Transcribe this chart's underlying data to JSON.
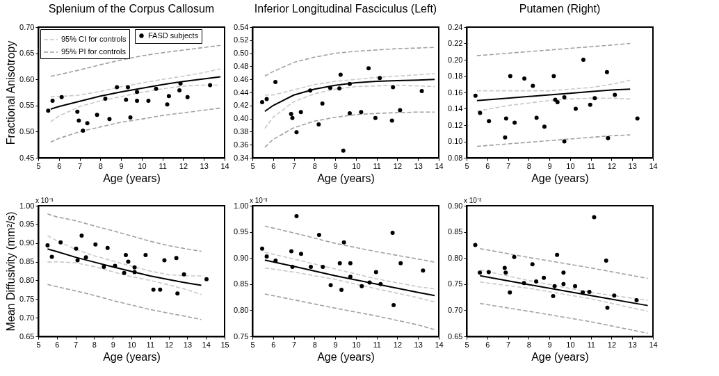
{
  "chart_data": [
    {
      "type": "scatter",
      "title": "Splenium of the Corpus Callosum",
      "xlabel": "Age (years)",
      "ylabel": "Fractional Anisotropy",
      "xlim": [
        5,
        14
      ],
      "xticks": [
        5,
        6,
        7,
        8,
        9,
        10,
        11,
        12,
        13,
        14
      ],
      "ylim": [
        0.45,
        0.7
      ],
      "yticks": [
        {
          "value": 0.45,
          "label": "0.45"
        },
        {
          "value": 0.5,
          "label": "0.50"
        },
        {
          "value": 0.55,
          "label": "0.55"
        },
        {
          "value": 0.6,
          "label": "0.60"
        },
        {
          "value": 0.65,
          "label": "0.65"
        },
        {
          "value": 0.7,
          "label": "0.70"
        }
      ],
      "legend": "top left",
      "series": [
        {
          "name": "95% CI for controls",
          "type": "line",
          "line_style": "dashed",
          "color": "#c8c8c8",
          "x": [
            5.6,
            6,
            7,
            8,
            9,
            10,
            11,
            12,
            13,
            13.8
          ],
          "values": [
            0.567,
            0.567,
            0.57,
            0.577,
            0.586,
            0.593,
            0.6,
            0.606,
            0.613,
            0.62
          ]
        },
        {
          "type": "line",
          "line_style": "dashed",
          "color": "#c8c8c8",
          "x": [
            5.6,
            6,
            7,
            8,
            9,
            10,
            11,
            12,
            13,
            13.8
          ],
          "values": [
            0.519,
            0.53,
            0.548,
            0.559,
            0.567,
            0.575,
            0.582,
            0.587,
            0.589,
            0.589
          ]
        },
        {
          "name": "95% PI for controls",
          "type": "line",
          "line_style": "dashed",
          "color": "#a0a0a0",
          "x": [
            5.6,
            6,
            7,
            8,
            9,
            10,
            11,
            12,
            13,
            13.8
          ],
          "values": [
            0.606,
            0.609,
            0.618,
            0.628,
            0.637,
            0.645,
            0.651,
            0.656,
            0.661,
            0.665
          ]
        },
        {
          "type": "line",
          "line_style": "dashed",
          "color": "#a0a0a0",
          "x": [
            5.6,
            6,
            7,
            8,
            9,
            10,
            11,
            12,
            13,
            13.8
          ],
          "values": [
            0.48,
            0.487,
            0.5,
            0.509,
            0.518,
            0.524,
            0.531,
            0.536,
            0.541,
            0.545
          ]
        },
        {
          "type": "line",
          "line_style": "solid",
          "color": "#000000",
          "x": [
            5.6,
            6,
            7,
            8,
            9,
            10,
            11,
            12,
            13,
            13.8
          ],
          "values": [
            0.543,
            0.548,
            0.558,
            0.568,
            0.576,
            0.583,
            0.59,
            0.596,
            0.601,
            0.605
          ]
        },
        {
          "name": "FASD subjects",
          "type": "scatter",
          "marker": "circle",
          "color": "#000000",
          "x": [
            5.48,
            5.69,
            6.13,
            6.89,
            6.96,
            7.16,
            7.37,
            7.84,
            8.24,
            8.44,
            8.8,
            9.24,
            9.33,
            9.45,
            9.77,
            9.77,
            10.32,
            10.69,
            11.31,
            11.23,
            11.82,
            11.87,
            12.21,
            13.3
          ],
          "values": [
            0.54,
            0.559,
            0.566,
            0.538,
            0.521,
            0.502,
            0.516,
            0.532,
            0.563,
            0.524,
            0.585,
            0.561,
            0.585,
            0.527,
            0.576,
            0.559,
            0.559,
            0.582,
            0.568,
            0.552,
            0.579,
            0.592,
            0.566,
            0.589
          ]
        }
      ]
    },
    {
      "type": "scatter",
      "title": "Inferior Longitudinal Fasciculus (Left)",
      "xlabel": "Age (years)",
      "xlim": [
        5,
        14
      ],
      "xticks": [
        5,
        6,
        7,
        8,
        9,
        10,
        11,
        12,
        13,
        14
      ],
      "ylim": [
        0.34,
        0.54
      ],
      "yticks": [
        {
          "value": 0.34,
          "label": "0.34"
        },
        {
          "value": 0.36,
          "label": "0.36"
        },
        {
          "value": 0.38,
          "label": "0.38"
        },
        {
          "value": 0.4,
          "label": "0.40"
        },
        {
          "value": 0.42,
          "label": "0.42"
        },
        {
          "value": 0.44,
          "label": "0.44"
        },
        {
          "value": 0.46,
          "label": "0.46"
        },
        {
          "value": 0.48,
          "label": "0.48"
        },
        {
          "value": 0.5,
          "label": "0.50"
        },
        {
          "value": 0.52,
          "label": "0.52"
        },
        {
          "value": 0.54,
          "label": "0.54"
        }
      ],
      "series": [
        {
          "type": "line",
          "line_style": "dashed",
          "color": "#c8c8c8",
          "x": [
            5.6,
            6,
            7,
            8,
            9,
            10,
            11,
            12,
            13,
            13.8
          ],
          "values": [
            0.436,
            0.436,
            0.444,
            0.452,
            0.457,
            0.46,
            0.463,
            0.465,
            0.467,
            0.469
          ]
        },
        {
          "type": "line",
          "line_style": "dashed",
          "color": "#c8c8c8",
          "x": [
            5.6,
            6,
            7,
            8,
            9,
            10,
            11,
            12,
            13,
            13.8
          ],
          "values": [
            0.385,
            0.402,
            0.426,
            0.438,
            0.445,
            0.449,
            0.45,
            0.451,
            0.45,
            0.449
          ]
        },
        {
          "type": "line",
          "line_style": "dashed",
          "color": "#a0a0a0",
          "x": [
            5.6,
            6,
            7,
            8,
            9,
            10,
            11,
            12,
            13,
            13.8
          ],
          "values": [
            0.465,
            0.472,
            0.486,
            0.494,
            0.5,
            0.503,
            0.505,
            0.507,
            0.508,
            0.509
          ]
        },
        {
          "type": "line",
          "line_style": "dashed",
          "color": "#a0a0a0",
          "x": [
            5.6,
            6,
            7,
            8,
            9,
            10,
            11,
            12,
            13,
            13.8
          ],
          "values": [
            0.356,
            0.368,
            0.386,
            0.396,
            0.402,
            0.406,
            0.408,
            0.409,
            0.41,
            0.41
          ]
        },
        {
          "type": "line",
          "line_style": "solid",
          "color": "#000000",
          "x": [
            5.6,
            6,
            7,
            8,
            9,
            10,
            11,
            12,
            13,
            13.8
          ],
          "values": [
            0.411,
            0.42,
            0.436,
            0.445,
            0.451,
            0.455,
            0.457,
            0.458,
            0.459,
            0.46
          ]
        },
        {
          "type": "scatter",
          "marker": "circle",
          "color": "#000000",
          "x": [
            5.47,
            5.69,
            6.11,
            6.87,
            6.93,
            7.13,
            7.34,
            7.79,
            8.2,
            8.38,
            8.76,
            9.2,
            9.26,
            9.39,
            9.7,
            9.7,
            10.25,
            10.61,
            10.94,
            11.15,
            11.74,
            11.79,
            12.13,
            13.18
          ],
          "values": [
            0.425,
            0.43,
            0.456,
            0.407,
            0.401,
            0.379,
            0.41,
            0.443,
            0.391,
            0.423,
            0.447,
            0.446,
            0.467,
            0.351,
            0.453,
            0.408,
            0.41,
            0.477,
            0.401,
            0.462,
            0.397,
            0.448,
            0.413,
            0.442
          ]
        }
      ]
    },
    {
      "type": "scatter",
      "title": "Putamen (Right)",
      "xlabel": "Age (years)",
      "xlim": [
        5,
        14
      ],
      "xticks": [
        5,
        6,
        7,
        8,
        9,
        10,
        11,
        12,
        13,
        14
      ],
      "ylim": [
        0.08,
        0.24
      ],
      "yticks": [
        {
          "value": 0.08,
          "label": "0.08"
        },
        {
          "value": 0.1,
          "label": "0.10"
        },
        {
          "value": 0.12,
          "label": "0.12"
        },
        {
          "value": 0.14,
          "label": "0.14"
        },
        {
          "value": 0.16,
          "label": "0.16"
        },
        {
          "value": 0.18,
          "label": "0.18"
        },
        {
          "value": 0.2,
          "label": "0.20"
        },
        {
          "value": 0.22,
          "label": "0.22"
        },
        {
          "value": 0.24,
          "label": "0.24"
        }
      ],
      "series": [
        {
          "type": "line",
          "line_style": "dashed",
          "color": "#c8c8c8",
          "x": [
            5.5,
            7,
            9,
            10,
            11,
            12,
            12.9
          ],
          "values": [
            0.162,
            0.162,
            0.162,
            0.164,
            0.166,
            0.17,
            0.175
          ]
        },
        {
          "type": "line",
          "line_style": "dashed",
          "color": "#c8c8c8",
          "x": [
            5.5,
            7,
            9,
            10,
            11,
            12,
            12.9
          ],
          "values": [
            0.137,
            0.144,
            0.15,
            0.152,
            0.153,
            0.153,
            0.152
          ]
        },
        {
          "type": "line",
          "line_style": "dashed",
          "color": "#a0a0a0",
          "x": [
            5.5,
            7,
            9,
            10,
            11,
            12,
            12.9
          ],
          "values": [
            0.205,
            0.208,
            0.212,
            0.214,
            0.216,
            0.218,
            0.22
          ]
        },
        {
          "type": "line",
          "line_style": "dashed",
          "color": "#a0a0a0",
          "x": [
            5.5,
            7,
            9,
            10,
            11,
            12,
            12.9
          ],
          "values": [
            0.094,
            0.097,
            0.101,
            0.103,
            0.105,
            0.107,
            0.108
          ]
        },
        {
          "type": "line",
          "line_style": "solid",
          "color": "#000000",
          "x": [
            5.5,
            7,
            9,
            10,
            11,
            12,
            12.9
          ],
          "values": [
            0.15,
            0.153,
            0.157,
            0.159,
            0.161,
            0.163,
            0.164
          ]
        },
        {
          "type": "scatter",
          "marker": "circle",
          "color": "#000000",
          "x": [
            5.43,
            5.65,
            6.08,
            6.86,
            6.91,
            7.11,
            7.32,
            7.79,
            8.2,
            8.38,
            8.76,
            9.21,
            9.28,
            9.39,
            9.72,
            9.72,
            10.27,
            10.64,
            10.97,
            11.19,
            11.78,
            11.83,
            12.16,
            13.25
          ],
          "values": [
            0.156,
            0.135,
            0.125,
            0.105,
            0.128,
            0.18,
            0.123,
            0.177,
            0.168,
            0.129,
            0.118,
            0.18,
            0.151,
            0.148,
            0.154,
            0.1,
            0.14,
            0.2,
            0.145,
            0.153,
            0.185,
            0.104,
            0.157,
            0.128
          ]
        }
      ]
    },
    {
      "type": "scatter",
      "xlabel": "Age (years)",
      "ylabel": "Mean Diffusivity (mm²/s)",
      "annotations": [
        "x 10⁻³"
      ],
      "xlim": [
        5,
        15
      ],
      "xticks": [
        5,
        6,
        7,
        8,
        9,
        10,
        11,
        12,
        13,
        14,
        15
      ],
      "ylim": [
        0.65,
        1.0
      ],
      "yticks": [
        {
          "value": 0.65,
          "label": "0.65"
        },
        {
          "value": 0.7,
          "label": "0.70"
        },
        {
          "value": 0.75,
          "label": "0.75"
        },
        {
          "value": 0.8,
          "label": "0.80"
        },
        {
          "value": 0.85,
          "label": "0.85"
        },
        {
          "value": 0.9,
          "label": "0.90"
        },
        {
          "value": 0.95,
          "label": "0.95"
        },
        {
          "value": 1.0,
          "label": "1.00"
        }
      ],
      "series": [
        {
          "type": "line",
          "line_style": "dashed",
          "color": "#c8c8c8",
          "x": [
            5.5,
            6,
            7,
            8,
            9,
            10,
            11,
            12,
            13,
            13.75
          ],
          "values": [
            0.92,
            0.906,
            0.883,
            0.866,
            0.852,
            0.838,
            0.825,
            0.815,
            0.812,
            0.812
          ]
        },
        {
          "type": "line",
          "line_style": "dashed",
          "color": "#c8c8c8",
          "x": [
            5.5,
            6,
            7,
            8,
            9,
            10,
            11,
            12,
            13,
            13.75
          ],
          "values": [
            0.849,
            0.85,
            0.847,
            0.837,
            0.823,
            0.81,
            0.8,
            0.788,
            0.775,
            0.762
          ]
        },
        {
          "type": "line",
          "line_style": "dashed",
          "color": "#a0a0a0",
          "x": [
            5.5,
            6,
            7,
            8,
            9,
            10,
            11,
            12,
            13,
            13.75
          ],
          "values": [
            0.978,
            0.97,
            0.96,
            0.946,
            0.933,
            0.919,
            0.905,
            0.893,
            0.884,
            0.878
          ]
        },
        {
          "type": "line",
          "line_style": "dashed",
          "color": "#a0a0a0",
          "x": [
            5.5,
            6,
            7,
            8,
            9,
            10,
            11,
            12,
            13,
            13.75
          ],
          "values": [
            0.789,
            0.783,
            0.772,
            0.76,
            0.746,
            0.734,
            0.722,
            0.712,
            0.703,
            0.695
          ]
        },
        {
          "type": "line",
          "line_style": "solid",
          "color": "#000000",
          "x": [
            5.5,
            6,
            7,
            8,
            9,
            10,
            11,
            12,
            13,
            13.75
          ],
          "values": [
            0.884,
            0.877,
            0.862,
            0.849,
            0.836,
            0.824,
            0.812,
            0.802,
            0.793,
            0.787
          ]
        },
        {
          "type": "scatter",
          "marker": "circle",
          "color": "#000000",
          "x": [
            5.5,
            5.73,
            6.2,
            7.03,
            7.11,
            7.33,
            7.56,
            8.07,
            8.52,
            8.72,
            9.12,
            9.61,
            9.7,
            9.83,
            10.17,
            10.17,
            10.76,
            11.18,
            11.54,
            11.77,
            12.41,
            12.47,
            12.82,
            14.03
          ],
          "values": [
            0.894,
            0.863,
            0.902,
            0.885,
            0.854,
            0.92,
            0.862,
            0.896,
            0.836,
            0.887,
            0.839,
            0.82,
            0.868,
            0.85,
            0.835,
            0.822,
            0.868,
            0.775,
            0.775,
            0.854,
            0.86,
            0.765,
            0.816,
            0.803
          ]
        }
      ]
    },
    {
      "type": "scatter",
      "xlabel": "Age (years)",
      "annotations": [
        "x 10⁻³"
      ],
      "xlim": [
        5,
        14
      ],
      "xticks": [
        5,
        6,
        7,
        8,
        9,
        10,
        11,
        12,
        13,
        14
      ],
      "ylim": [
        0.75,
        1.0
      ],
      "yticks": [
        {
          "value": 0.75,
          "label": "0.75"
        },
        {
          "value": 0.8,
          "label": "0.80"
        },
        {
          "value": 0.85,
          "label": "0.85"
        },
        {
          "value": 0.9,
          "label": "0.90"
        },
        {
          "value": 0.95,
          "label": "0.95"
        },
        {
          "value": 1.0,
          "label": "1.00"
        }
      ],
      "series": [
        {
          "type": "line",
          "line_style": "dashed",
          "color": "#c8c8c8",
          "x": [
            5.6,
            7,
            9,
            11,
            13,
            13.8
          ],
          "values": [
            0.911,
            0.898,
            0.879,
            0.86,
            0.845,
            0.841
          ]
        },
        {
          "type": "line",
          "line_style": "dashed",
          "color": "#c8c8c8",
          "x": [
            5.6,
            7,
            9,
            11,
            13,
            13.8
          ],
          "values": [
            0.881,
            0.873,
            0.859,
            0.841,
            0.824,
            0.816
          ]
        },
        {
          "type": "line",
          "line_style": "dashed",
          "color": "#a0a0a0",
          "x": [
            5.6,
            7,
            9,
            11,
            13,
            13.8
          ],
          "values": [
            0.961,
            0.948,
            0.928,
            0.912,
            0.898,
            0.892
          ]
        },
        {
          "type": "line",
          "line_style": "dashed",
          "color": "#a0a0a0",
          "x": [
            5.6,
            7,
            9,
            11,
            13,
            13.8
          ],
          "values": [
            0.831,
            0.82,
            0.804,
            0.789,
            0.772,
            0.763
          ]
        },
        {
          "type": "line",
          "line_style": "solid",
          "color": "#000000",
          "x": [
            5.6,
            7,
            9,
            11,
            13,
            13.8
          ],
          "values": [
            0.896,
            0.884,
            0.866,
            0.85,
            0.834,
            0.828
          ]
        },
        {
          "type": "scatter",
          "marker": "circle",
          "color": "#000000",
          "x": [
            5.47,
            5.69,
            6.12,
            6.88,
            6.93,
            7.13,
            7.35,
            7.82,
            8.22,
            8.4,
            8.78,
            9.22,
            9.3,
            9.42,
            9.73,
            9.73,
            10.28,
            10.66,
            10.97,
            11.19,
            11.77,
            11.82,
            12.16,
            13.24
          ],
          "values": [
            0.918,
            0.903,
            0.895,
            0.913,
            0.883,
            0.98,
            0.908,
            0.883,
            0.944,
            0.883,
            0.848,
            0.89,
            0.839,
            0.93,
            0.89,
            0.864,
            0.846,
            0.853,
            0.873,
            0.85,
            0.948,
            0.81,
            0.89,
            0.876
          ]
        }
      ]
    },
    {
      "type": "scatter",
      "xlabel": "Age (years)",
      "annotations": [
        "x 10⁻³"
      ],
      "xlim": [
        5,
        14
      ],
      "xticks": [
        5,
        6,
        7,
        8,
        9,
        10,
        11,
        12,
        13,
        14
      ],
      "ylim": [
        0.65,
        0.9
      ],
      "yticks": [
        {
          "value": 0.65,
          "label": "0.65"
        },
        {
          "value": 0.7,
          "label": "0.70"
        },
        {
          "value": 0.75,
          "label": "0.75"
        },
        {
          "value": 0.8,
          "label": "0.80"
        },
        {
          "value": 0.85,
          "label": "0.85"
        },
        {
          "value": 0.9,
          "label": "0.90"
        }
      ],
      "series": [
        {
          "type": "line",
          "line_style": "dashed",
          "color": "#c8c8c8",
          "x": [
            5.65,
            8,
            11,
            13.75
          ],
          "values": [
            0.777,
            0.757,
            0.734,
            0.719
          ]
        },
        {
          "type": "line",
          "line_style": "dashed",
          "color": "#c8c8c8",
          "x": [
            5.65,
            8,
            11,
            13.75
          ],
          "values": [
            0.754,
            0.742,
            0.722,
            0.698
          ]
        },
        {
          "type": "line",
          "line_style": "dashed",
          "color": "#a0a0a0",
          "x": [
            5.65,
            8,
            11,
            13.75
          ],
          "values": [
            0.818,
            0.801,
            0.781,
            0.761
          ]
        },
        {
          "type": "line",
          "line_style": "dashed",
          "color": "#a0a0a0",
          "x": [
            5.65,
            8,
            11,
            13.75
          ],
          "values": [
            0.713,
            0.698,
            0.678,
            0.656
          ]
        },
        {
          "type": "line",
          "line_style": "solid",
          "color": "#000000",
          "x": [
            5.65,
            8,
            11,
            13.75
          ],
          "values": [
            0.766,
            0.749,
            0.728,
            0.709
          ]
        },
        {
          "type": "scatter",
          "marker": "circle",
          "color": "#000000",
          "x": [
            5.42,
            5.64,
            6.07,
            6.84,
            6.89,
            7.09,
            7.3,
            7.77,
            8.18,
            8.36,
            8.73,
            9.18,
            9.25,
            9.37,
            9.68,
            9.68,
            10.24,
            10.61,
            10.93,
            11.16,
            11.74,
            11.8,
            12.13,
            13.21
          ],
          "values": [
            0.825,
            0.772,
            0.773,
            0.781,
            0.772,
            0.734,
            0.802,
            0.752,
            0.788,
            0.755,
            0.762,
            0.727,
            0.746,
            0.806,
            0.772,
            0.75,
            0.746,
            0.734,
            0.735,
            0.878,
            0.795,
            0.705,
            0.728,
            0.719
          ]
        }
      ]
    }
  ]
}
